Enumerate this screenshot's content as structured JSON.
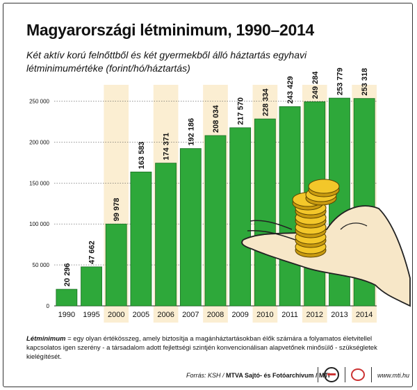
{
  "title": "Magyarországi létminimum, 1990–2014",
  "subtitle": "Két aktív korú felnőttből és két gyermekből álló háztartás egyhavi létminimumértéke (forint/hó/háztartás)",
  "footnote": {
    "term": "Létminimum",
    "text": " = egy olyan értékösszeg, amely biztosítja a magánháztartásokban élők számára a folyamatos életvitellel kapcsolatos igen szerény - a  társadalom adott fejlettségi szintjén konvencionálisan alapvetőnek minősülő - szükségletek kielégítését."
  },
  "source": {
    "prefix": "Forrás: KSH / ",
    "agency": "MTVA Sajtó- és Fotóarchívum / MTI"
  },
  "website": "www.mti.hu",
  "colors": {
    "bar": "#2ea83a",
    "bar_edge": "#1a6e22",
    "highlight_band": "#fbeed2",
    "grid": "#555555"
  },
  "chart_data": {
    "type": "bar",
    "categories": [
      "1990",
      "1995",
      "2000",
      "2005",
      "2006",
      "2007",
      "2008",
      "2009",
      "2010",
      "2011",
      "2012",
      "2013",
      "2014"
    ],
    "values": [
      20296,
      47662,
      99978,
      163583,
      174371,
      192186,
      208034,
      217570,
      228334,
      243429,
      249284,
      253779,
      253318
    ],
    "value_labels": [
      "20 296",
      "47 662",
      "99 978",
      "163 583",
      "174 371",
      "192 186",
      "208 034",
      "217 570",
      "228 334",
      "243 429",
      "249 284",
      "253 779",
      "253 318"
    ],
    "y_ticks": [
      0,
      50000,
      100000,
      150000,
      200000,
      250000
    ],
    "y_tick_labels": [
      "0",
      "50 000",
      "100 000",
      "150 000",
      "200 000",
      "250 000"
    ],
    "ylim": [
      0,
      270000
    ],
    "highlighted_categories": [
      "2000",
      "2006",
      "2008",
      "2010",
      "2012",
      "2014"
    ],
    "grid": true,
    "xlabel": "",
    "ylabel": ""
  }
}
